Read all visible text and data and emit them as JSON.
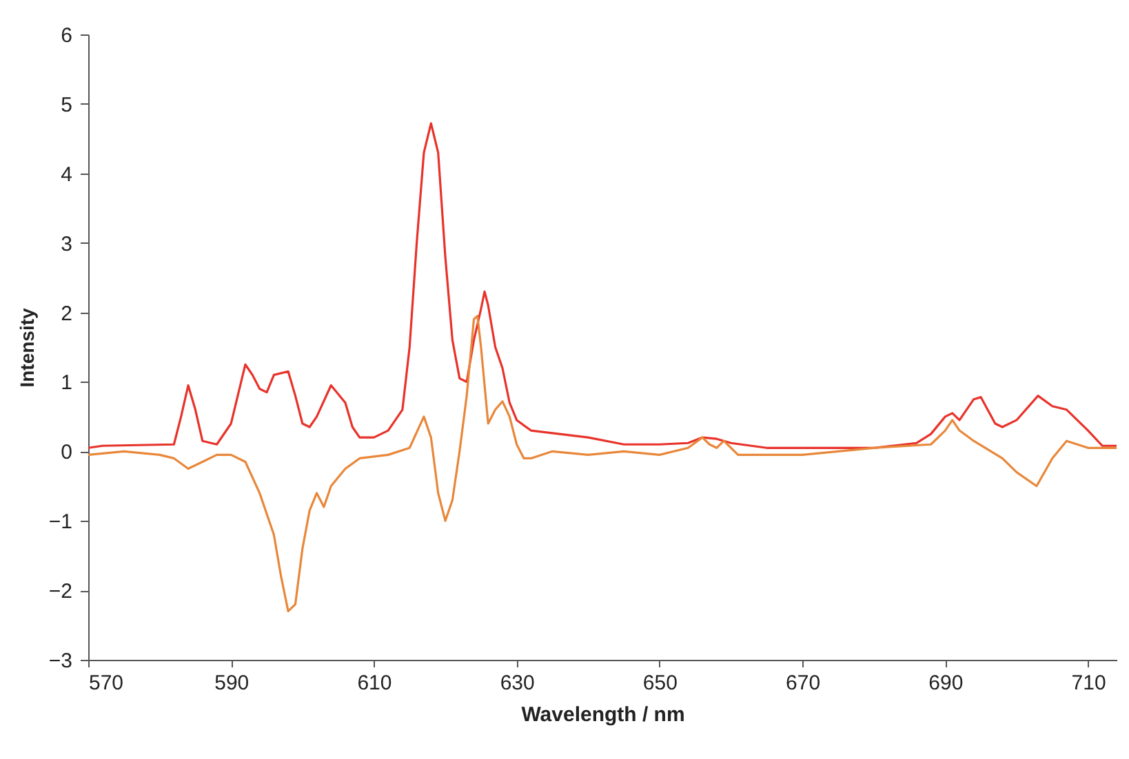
{
  "chart_data": {
    "type": "line",
    "xlabel": "Wavelength / nm",
    "ylabel": "Intensity",
    "xlim": [
      570,
      714
    ],
    "xticks": [
      570,
      590,
      610,
      630,
      650,
      670,
      690,
      710
    ],
    "ylim": [
      -3,
      6
    ],
    "yticks": [
      -3,
      -2,
      -1,
      0,
      1,
      2,
      3,
      4,
      5,
      6
    ],
    "grid": false,
    "legend": false,
    "marker": "none",
    "line_style": "solid",
    "series": [
      {
        "color": "#e8322a",
        "x": [
          570,
          572,
          582,
          583,
          584,
          585,
          586,
          588,
          590,
          592,
          593,
          594,
          595,
          596,
          598,
          599,
          600,
          601,
          602,
          604,
          606,
          607,
          608,
          610,
          612,
          614,
          615,
          616,
          617,
          618,
          619,
          620,
          621,
          622,
          623,
          624,
          625,
          625.5,
          626,
          627,
          628,
          629,
          630,
          632,
          640,
          645,
          650,
          654,
          656,
          658,
          660,
          665,
          680,
          686,
          688,
          690,
          691,
          692,
          694,
          695,
          697,
          698,
          700,
          703,
          705,
          707,
          710,
          712,
          714
        ],
        "values": [
          0.05,
          0.08,
          0.1,
          0.5,
          0.95,
          0.6,
          0.15,
          0.1,
          0.4,
          1.25,
          1.1,
          0.9,
          0.85,
          1.1,
          1.15,
          0.8,
          0.4,
          0.35,
          0.5,
          0.95,
          0.7,
          0.35,
          0.2,
          0.2,
          0.3,
          0.6,
          1.5,
          3,
          4.3,
          4.72,
          4.3,
          2.8,
          1.6,
          1.05,
          1.0,
          1.6,
          2.05,
          2.3,
          2.1,
          1.5,
          1.2,
          0.7,
          0.45,
          0.3,
          0.2,
          0.1,
          0.1,
          0.12,
          0.2,
          0.18,
          0.12,
          0.05,
          0.05,
          0.12,
          0.25,
          0.5,
          0.55,
          0.45,
          0.75,
          0.78,
          0.4,
          0.35,
          0.45,
          0.8,
          0.65,
          0.6,
          0.3,
          0.08,
          0.08
        ]
      },
      {
        "color": "#e8873a",
        "x": [
          570,
          575,
          580,
          582,
          584,
          586,
          588,
          590,
          592,
          594,
          596,
          597,
          598,
          599,
          600,
          601,
          602,
          603,
          604,
          606,
          608,
          612,
          615,
          617,
          618,
          619,
          620,
          621,
          622,
          623,
          624,
          624.5,
          625,
          626,
          627,
          628,
          629,
          630,
          631,
          632,
          635,
          640,
          645,
          650,
          654,
          656,
          657,
          658,
          659,
          661,
          664,
          670,
          680,
          688,
          690,
          691,
          692,
          694,
          698,
          700,
          702.8,
          705,
          707,
          710,
          714
        ],
        "values": [
          -0.05,
          0,
          -0.05,
          -0.1,
          -0.25,
          -0.15,
          -0.05,
          -0.05,
          -0.15,
          -0.6,
          -1.2,
          -1.8,
          -2.3,
          -2.2,
          -1.4,
          -0.85,
          -0.6,
          -0.8,
          -0.5,
          -0.25,
          -0.1,
          -0.05,
          0.05,
          0.5,
          0.2,
          -0.6,
          -1.0,
          -0.7,
          0,
          0.8,
          1.9,
          1.95,
          1.5,
          0.4,
          0.6,
          0.72,
          0.5,
          0.1,
          -0.1,
          -0.1,
          0,
          -0.05,
          0,
          -0.05,
          0.05,
          0.2,
          0.1,
          0.05,
          0.15,
          -0.05,
          -0.05,
          -0.05,
          0.05,
          0.1,
          0.3,
          0.45,
          0.3,
          0.15,
          -0.1,
          -0.3,
          -0.5,
          -0.1,
          0.15,
          0.05,
          0.05
        ]
      }
    ]
  }
}
